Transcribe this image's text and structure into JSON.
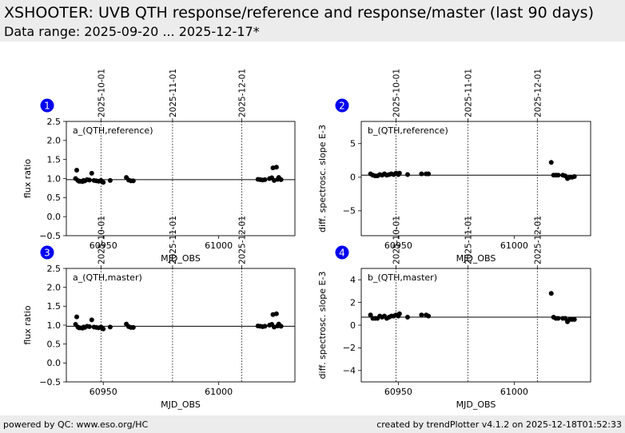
{
  "header": {
    "title": "XSHOOTER: UVB QTH response/reference and response/master (last 90 days)",
    "subtitle": "Data range: 2025-09-20 ... 2025-12-17*"
  },
  "footer": {
    "left": "powered by QC: www.eso.org/HC",
    "right": "created by trendPlotter v4.1.2 on 2025-12-18T01:52:33"
  },
  "colors": {
    "badge": "#0000ee",
    "header_bg": "#ececec",
    "marker": "#000000"
  },
  "chart_data": [
    {
      "type": "scatter",
      "badge": "1",
      "label": "a_(QTH,reference)",
      "xlabel": "MJD_OBS",
      "ylabel": "flux ratio",
      "xlim": [
        60934,
        61033
      ],
      "ylim": [
        -0.5,
        2.5
      ],
      "yticks": [
        -0.5,
        0.0,
        0.5,
        1.0,
        1.5,
        2.0,
        2.5
      ],
      "ytick_labels": [
        "−0.5",
        "0.0",
        "0.5",
        "1.0",
        "1.5",
        "2.0",
        "2.5"
      ],
      "xticks": [
        60950,
        61000
      ],
      "xtick_labels": [
        "60950",
        "61000"
      ],
      "date_ticks": [
        {
          "label": "2025-10-01",
          "mjd": 60949
        },
        {
          "label": "2025-11-01",
          "mjd": 60980
        },
        {
          "label": "2025-12-01",
          "mjd": 61010
        }
      ],
      "reference_line": 0.97,
      "x": [
        60938,
        60938.5,
        60939,
        60939.5,
        60940,
        60941,
        60941.5,
        60942,
        60943,
        60944,
        60945,
        60946,
        60947,
        60948,
        60949,
        60949.5,
        60950,
        60953,
        60960,
        60961,
        60962,
        60963,
        61017,
        61018,
        61019,
        61020,
        61022,
        61023,
        61023.5,
        61024,
        61025,
        61025.5,
        61026,
        61027
      ],
      "y": [
        1.0,
        1.22,
        0.95,
        0.93,
        0.93,
        0.92,
        0.95,
        0.94,
        0.97,
        0.96,
        1.14,
        0.95,
        0.94,
        0.93,
        0.95,
        0.92,
        0.9,
        0.95,
        1.03,
        0.96,
        0.94,
        0.94,
        0.98,
        0.97,
        0.96,
        0.97,
        1.0,
        1.02,
        1.28,
        0.95,
        1.3,
        0.98,
        1.03,
        0.97
      ]
    },
    {
      "type": "scatter",
      "badge": "2",
      "label": "b_(QTH,reference)",
      "xlabel": "MJD_OBS",
      "ylabel": "diff. spectrosc. slope E-3",
      "xlim": [
        60934,
        61033
      ],
      "ylim": [
        -8.7,
        8.3
      ],
      "yticks": [
        -5,
        0,
        5
      ],
      "ytick_labels": [
        "−5",
        "0",
        "5"
      ],
      "xticks": [
        60950,
        61000
      ],
      "xtick_labels": [
        "60950",
        "61000"
      ],
      "date_ticks": [
        {
          "label": "2025-10-01",
          "mjd": 60949
        },
        {
          "label": "2025-11-01",
          "mjd": 60980
        },
        {
          "label": "2025-12-01",
          "mjd": 61010
        }
      ],
      "reference_line": 0.3,
      "x": [
        60938,
        60939,
        60940,
        60941,
        60942,
        60943,
        60944,
        60945,
        60946,
        60947,
        60948,
        60949,
        60950,
        60950.5,
        60954,
        60960,
        60962,
        60963,
        61016,
        61017,
        61018,
        61019,
        61021,
        61022,
        61023,
        61024,
        61025,
        61026
      ],
      "y": [
        0.5,
        0.3,
        0.2,
        0.2,
        0.4,
        0.3,
        0.5,
        0.3,
        0.4,
        0.5,
        0.4,
        0.6,
        0.4,
        0.6,
        0.4,
        0.5,
        0.5,
        0.5,
        2.2,
        0.3,
        0.3,
        0.3,
        0.3,
        0.2,
        -0.2,
        0.0,
        0.0,
        0.1
      ]
    },
    {
      "type": "scatter",
      "badge": "3",
      "label": "a_(QTH,master)",
      "xlabel": "MJD_OBS",
      "ylabel": "flux ratio",
      "xlim": [
        60934,
        61033
      ],
      "ylim": [
        -0.5,
        2.5
      ],
      "yticks": [
        -0.5,
        0.0,
        0.5,
        1.0,
        1.5,
        2.0,
        2.5
      ],
      "ytick_labels": [
        "−0.5",
        "0.0",
        "0.5",
        "1.0",
        "1.5",
        "2.0",
        "2.5"
      ],
      "xticks": [
        60950,
        61000
      ],
      "xtick_labels": [
        "60950",
        "61000"
      ],
      "date_ticks": [
        {
          "label": "2025-10-01",
          "mjd": 60949
        },
        {
          "label": "2025-11-01",
          "mjd": 60980
        },
        {
          "label": "2025-12-01",
          "mjd": 61010
        }
      ],
      "reference_line": 0.97,
      "x": [
        60938,
        60938.5,
        60939,
        60939.5,
        60940,
        60941,
        60941.5,
        60942,
        60943,
        60944,
        60945,
        60946,
        60947,
        60948,
        60949,
        60949.5,
        60950,
        60953,
        60960,
        60961,
        60962,
        60963,
        61017,
        61018,
        61019,
        61020,
        61022,
        61023,
        61023.5,
        61024,
        61025,
        61025.5,
        61026,
        61027
      ],
      "y": [
        1.02,
        1.22,
        0.95,
        0.93,
        0.93,
        0.92,
        0.95,
        0.94,
        0.97,
        0.96,
        1.14,
        0.95,
        0.94,
        0.93,
        0.95,
        0.92,
        0.9,
        0.95,
        1.03,
        0.96,
        0.94,
        0.94,
        0.98,
        0.97,
        0.96,
        0.97,
        1.0,
        1.02,
        1.28,
        0.95,
        1.3,
        0.98,
        1.03,
        0.97
      ]
    },
    {
      "type": "scatter",
      "badge": "4",
      "label": "b_(QTH,master)",
      "xlabel": "MJD_OBS",
      "ylabel": "diff. spectrosc. slope E-3",
      "xlim": [
        60934,
        61033
      ],
      "ylim": [
        -5,
        5
      ],
      "yticks": [
        -4,
        -2,
        0,
        2,
        4
      ],
      "ytick_labels": [
        "−4",
        "−2",
        "0",
        "2",
        "4"
      ],
      "xticks": [
        60950,
        61000
      ],
      "xtick_labels": [
        "60950",
        "61000"
      ],
      "date_ticks": [
        {
          "label": "2025-10-01",
          "mjd": 60949
        },
        {
          "label": "2025-11-01",
          "mjd": 60980
        },
        {
          "label": "2025-12-01",
          "mjd": 61010
        }
      ],
      "reference_line": 0.7,
      "x": [
        60938,
        60939,
        60940,
        60941,
        60942,
        60943,
        60944,
        60945,
        60946,
        60947,
        60948,
        60949,
        60950,
        60950.5,
        60954,
        60960,
        60962,
        60963,
        61016,
        61017,
        61018,
        61019,
        61021,
        61022,
        61023,
        61024,
        61025,
        61026
      ],
      "y": [
        0.9,
        0.6,
        0.6,
        0.6,
        0.8,
        0.7,
        0.8,
        0.6,
        0.7,
        0.8,
        0.8,
        0.9,
        0.8,
        1.0,
        0.7,
        0.9,
        0.9,
        0.8,
        2.8,
        0.7,
        0.6,
        0.6,
        0.6,
        0.6,
        0.3,
        0.5,
        0.5,
        0.5
      ]
    }
  ]
}
